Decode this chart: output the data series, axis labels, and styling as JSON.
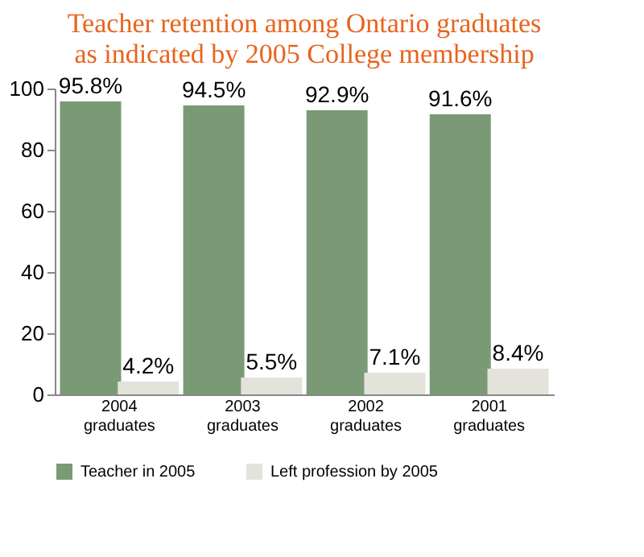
{
  "chart_data": {
    "type": "bar",
    "title": "Teacher retention among Ontario graduates as indicated by 2005 College membership",
    "categories": [
      "2004 graduates",
      "2003 graduates",
      "2002 graduates",
      "2001 graduates"
    ],
    "series": [
      {
        "name": "Teacher in 2005",
        "color": "#7a9a76",
        "values": [
          95.8,
          94.5,
          92.9,
          91.6
        ],
        "value_labels": [
          "95.8%",
          "94.5%",
          "92.9%",
          "91.6%"
        ]
      },
      {
        "name": "Left profession by 2005",
        "color": "#e3e3dc",
        "values": [
          4.2,
          5.5,
          7.1,
          8.4
        ],
        "value_labels": [
          "4.2%",
          "5.5%",
          "7.1%",
          "8.4%"
        ]
      }
    ],
    "ylim": [
      0,
      100
    ],
    "yticks": [
      0,
      20,
      40,
      60,
      80,
      100
    ],
    "grid": false,
    "legend": "bottom"
  }
}
